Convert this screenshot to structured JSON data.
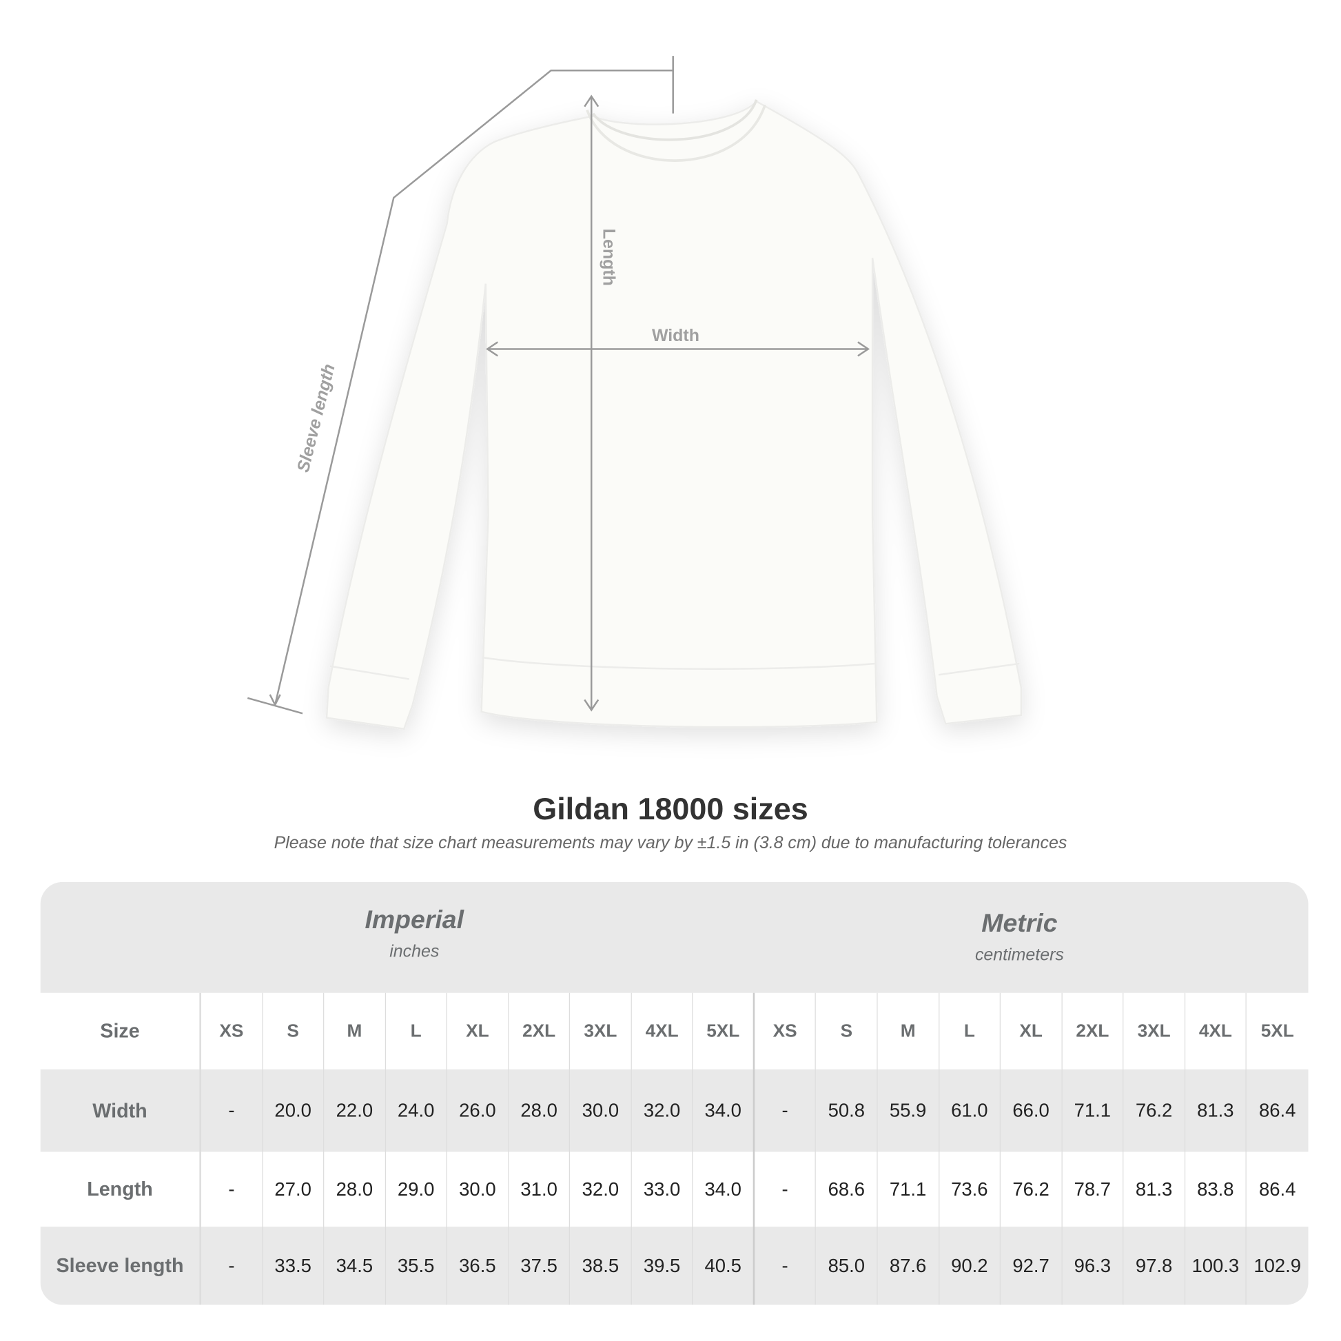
{
  "illustration": {
    "labels": {
      "length": "Length",
      "width": "Width",
      "sleeve": "Sleeve length"
    },
    "line_color": "#9a9a9a",
    "garment_color": "#fafaf7"
  },
  "title": "Gildan 18000 sizes",
  "note": "Please note that size chart measurements may vary by ±1.5 in (3.8 cm) due to manufacturing tolerances",
  "table": {
    "imperial": {
      "heading": "Imperial",
      "unit": "inches"
    },
    "metric": {
      "heading": "Metric",
      "unit": "centimeters"
    },
    "size_label": "Size",
    "sizes": [
      "XS",
      "S",
      "M",
      "L",
      "XL",
      "2XL",
      "3XL",
      "4XL",
      "5XL"
    ],
    "rows": [
      {
        "label": "Width",
        "imperial": [
          "-",
          "20.0",
          "22.0",
          "24.0",
          "26.0",
          "28.0",
          "30.0",
          "32.0",
          "34.0"
        ],
        "metric": [
          "-",
          "50.8",
          "55.9",
          "61.0",
          "66.0",
          "71.1",
          "76.2",
          "81.3",
          "86.4"
        ]
      },
      {
        "label": "Length",
        "imperial": [
          "-",
          "27.0",
          "28.0",
          "29.0",
          "30.0",
          "31.0",
          "32.0",
          "33.0",
          "34.0"
        ],
        "metric": [
          "-",
          "68.6",
          "71.1",
          "73.6",
          "76.2",
          "78.7",
          "81.3",
          "83.8",
          "86.4"
        ]
      },
      {
        "label": "Sleeve length",
        "imperial": [
          "-",
          "33.5",
          "34.5",
          "35.5",
          "36.5",
          "37.5",
          "38.5",
          "39.5",
          "40.5"
        ],
        "metric": [
          "-",
          "85.0",
          "87.6",
          "90.2",
          "92.7",
          "96.3",
          "97.8",
          "100.3",
          "102.9"
        ]
      }
    ],
    "band_color": "#e9e9e9",
    "label_color": "#6b6e70"
  }
}
